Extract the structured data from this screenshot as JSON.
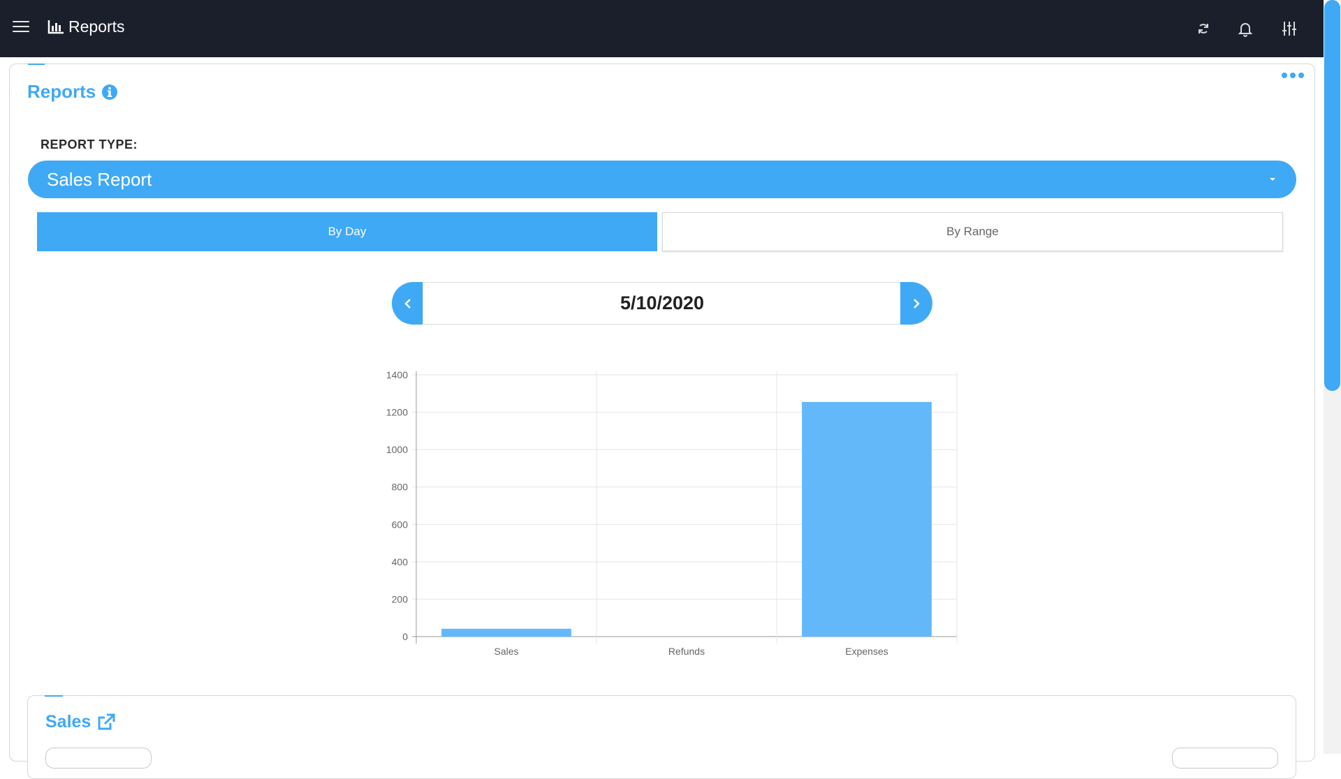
{
  "topbar": {
    "title": "Reports",
    "icons": [
      "menu-icon",
      "bar-chart-icon",
      "refresh-icon",
      "bell-icon",
      "sliders-icon"
    ]
  },
  "card": {
    "title": "Reports",
    "report_type_label": "REPORT TYPE:",
    "report_type_value": "Sales Report",
    "tabs": [
      {
        "label": "By Day",
        "active": true
      },
      {
        "label": "By Range",
        "active": false
      }
    ],
    "date": "5/10/2020"
  },
  "colors": {
    "accent": "#3fa9f5",
    "topbar": "#1a1f2b",
    "bar": "#63b8fa"
  },
  "chart_data": {
    "type": "bar",
    "categories": [
      "Sales",
      "Refunds",
      "Expenses"
    ],
    "values": [
      42,
      0,
      1255
    ],
    "ylim": [
      0,
      1400
    ],
    "yticks": [
      0,
      200,
      400,
      600,
      800,
      1000,
      1200,
      1400
    ],
    "grid": true,
    "legend": "none"
  },
  "sales_section": {
    "title": "Sales"
  }
}
